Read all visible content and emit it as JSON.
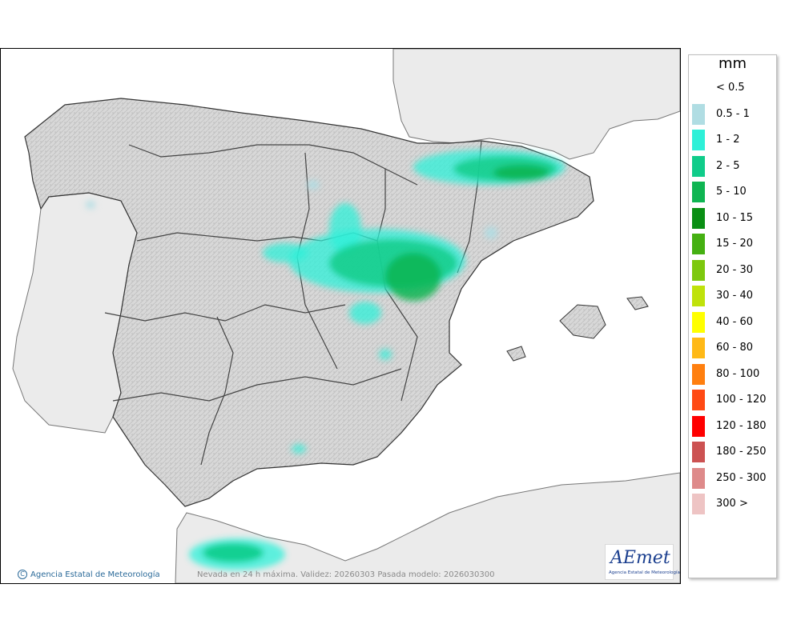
{
  "legend": {
    "unit": "mm",
    "classes": [
      {
        "label": "< 0.5",
        "color": ""
      },
      {
        "label": "0.5 - 1",
        "color": "#b0dde3"
      },
      {
        "label": "1 - 2",
        "color": "#2ef0d8"
      },
      {
        "label": "2 - 5",
        "color": "#10cc8a"
      },
      {
        "label": "5 - 10",
        "color": "#0fb552"
      },
      {
        "label": "10 - 15",
        "color": "#0a8f14"
      },
      {
        "label": "15 - 20",
        "color": "#45b012"
      },
      {
        "label": "20 - 30",
        "color": "#7dc80e"
      },
      {
        "label": "30 - 40",
        "color": "#bfe20b"
      },
      {
        "label": "40 - 60",
        "color": "#ffff00"
      },
      {
        "label": "60 - 80",
        "color": "#ffb917"
      },
      {
        "label": "80 - 100",
        "color": "#ff7f0f"
      },
      {
        "label": "100 - 120",
        "color": "#ff4a14"
      },
      {
        "label": "120 - 180",
        "color": "#ff0000"
      },
      {
        "label": "180 - 250",
        "color": "#cc5252"
      },
      {
        "label": "250 - 300",
        "color": "#de8a8a"
      },
      {
        "label": "300 >",
        "color": "#eec4c4"
      }
    ]
  },
  "credit": {
    "icon": "copyright-icon",
    "icon_glyph": "C",
    "text": "Agencia Estatal de Meteorología"
  },
  "footer": {
    "text": "Nevada en 24 h máxima. Validez: 20260303 Pasada modelo: 2026030300"
  },
  "logo": {
    "word": "AEmet",
    "subtitle": "Agencia Estatal de Meteorología"
  }
}
